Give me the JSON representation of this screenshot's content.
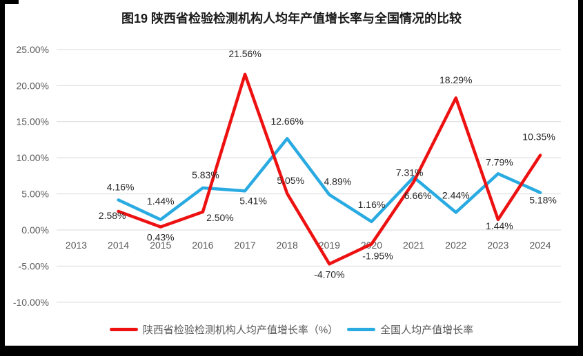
{
  "chart_data": {
    "type": "line",
    "title": "图19 陕西省检验检测机构人均年产值增长率与全国情况的比较",
    "categories": [
      "2013",
      "2014",
      "2015",
      "2016",
      "2017",
      "2018",
      "2019",
      "2020",
      "2021",
      "2022",
      "2023",
      "2024"
    ],
    "series": [
      {
        "name": "陕西省检验检测机构人均产值增长率（%）",
        "color": "#ED1111",
        "values": [
          null,
          2.58,
          0.43,
          2.5,
          21.56,
          5.05,
          -4.7,
          -1.95,
          6.66,
          18.29,
          1.44,
          10.35
        ],
        "data_labels": [
          null,
          "2.58%",
          "0.43%",
          "2.50%",
          "21.56%",
          "5.05%",
          "-4.70%",
          "-1.95%",
          "6.66%",
          "18.29%",
          "1.44%",
          "10.35%"
        ]
      },
      {
        "name": "全国人均产值增长率",
        "color": "#29ABE2",
        "values": [
          null,
          4.16,
          1.44,
          5.83,
          5.41,
          12.66,
          4.89,
          1.16,
          7.31,
          2.44,
          7.79,
          5.18
        ],
        "data_labels": [
          null,
          "4.16%",
          "1.44%",
          "5.83%",
          "5.41%",
          "12.66%",
          "4.89%",
          "1.16%",
          "7.31%",
          "2.44%",
          "7.79%",
          "5.18%"
        ]
      }
    ],
    "y_ticks": [
      25,
      20,
      15,
      10,
      5,
      0,
      -5,
      -10
    ],
    "y_tick_labels": [
      "25.00%",
      "20.00%",
      "15.00%",
      "10.00%",
      "5.00%",
      "0.00%",
      "-5.00%",
      "-10.00%"
    ],
    "ylim": [
      -10,
      25
    ],
    "xlabel": "",
    "ylabel": "",
    "grid": true,
    "data_labels_shown": true,
    "legend_position": "bottom",
    "colors": {
      "gridline": "#DADADA",
      "axis_text": "#595959",
      "data_label_text": "#262626",
      "title_text": "#1a1a1a",
      "background": "#ffffff",
      "frame": "#000000"
    }
  }
}
